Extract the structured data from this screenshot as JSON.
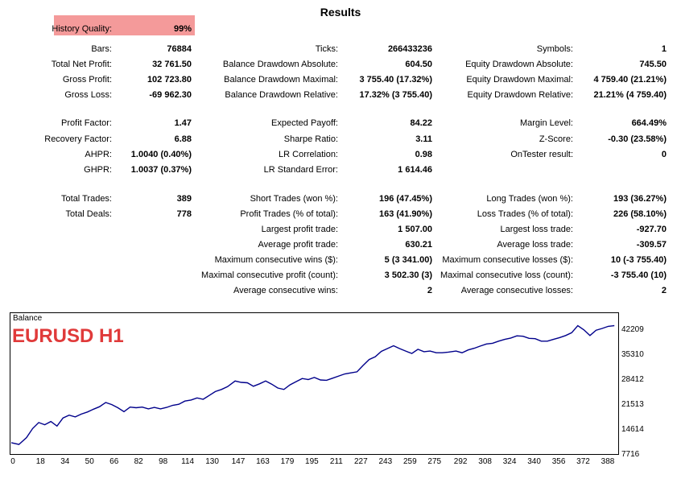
{
  "title": "Results",
  "history_quality": {
    "label": "History Quality:",
    "value": "99%"
  },
  "col1": [
    {
      "label": "Bars:",
      "value": "76884"
    },
    {
      "label": "Total Net Profit:",
      "value": "32 761.50"
    },
    {
      "label": "Gross Profit:",
      "value": "102 723.80"
    },
    {
      "label": "Gross Loss:",
      "value": "-69 962.30"
    },
    {
      "label": "Profit Factor:",
      "value": "1.47"
    },
    {
      "label": "Recovery Factor:",
      "value": "6.88"
    },
    {
      "label": "AHPR:",
      "value": "1.0040 (0.40%)"
    },
    {
      "label": "GHPR:",
      "value": "1.0037 (0.37%)"
    },
    {
      "label": "Total Trades:",
      "value": "389"
    },
    {
      "label": "Total Deals:",
      "value": "778"
    }
  ],
  "col2": [
    {
      "label": "Ticks:",
      "value": "266433236"
    },
    {
      "label": "Balance Drawdown Absolute:",
      "value": "604.50"
    },
    {
      "label": "Balance Drawdown Maximal:",
      "value": "3 755.40 (17.32%)"
    },
    {
      "label": "Balance Drawdown Relative:",
      "value": "17.32% (3 755.40)"
    },
    {
      "label": "Expected Payoff:",
      "value": "84.22"
    },
    {
      "label": "Sharpe Ratio:",
      "value": "3.11"
    },
    {
      "label": "LR Correlation:",
      "value": "0.98"
    },
    {
      "label": "LR Standard Error:",
      "value": "1 614.46"
    },
    {
      "label": "Short Trades (won %):",
      "value": "196 (47.45%)"
    },
    {
      "label": "Profit Trades (% of total):",
      "value": "163 (41.90%)"
    },
    {
      "label": "Largest profit trade:",
      "value": "1 507.00"
    },
    {
      "label": "Average profit trade:",
      "value": "630.21"
    },
    {
      "label": "Maximum consecutive wins ($):",
      "value": "5 (3 341.00)"
    },
    {
      "label": "Maximal consecutive profit (count):",
      "value": "3 502.30 (3)"
    },
    {
      "label": "Average consecutive wins:",
      "value": "2"
    }
  ],
  "col3": [
    {
      "label": "Symbols:",
      "value": "1"
    },
    {
      "label": "Equity Drawdown Absolute:",
      "value": "745.50"
    },
    {
      "label": "Equity Drawdown Maximal:",
      "value": "4 759.40 (21.21%)"
    },
    {
      "label": "Equity Drawdown Relative:",
      "value": "21.21% (4 759.40)"
    },
    {
      "label": "Margin Level:",
      "value": "664.49%"
    },
    {
      "label": "Z-Score:",
      "value": "-0.30 (23.58%)"
    },
    {
      "label": "OnTester result:",
      "value": "0"
    },
    {
      "label": "Long Trades (won %):",
      "value": "193 (36.27%)"
    },
    {
      "label": "Loss Trades (% of total):",
      "value": "226 (58.10%)"
    },
    {
      "label": "Largest loss trade:",
      "value": "-927.70"
    },
    {
      "label": "Average loss trade:",
      "value": "-309.57"
    },
    {
      "label": "Maximum consecutive losses ($):",
      "value": "10 (-3 755.40)"
    },
    {
      "label": "Maximal consecutive loss (count):",
      "value": "-3 755.40 (10)"
    },
    {
      "label": "Average consecutive losses:",
      "value": "2"
    }
  ],
  "chart": {
    "label": "Balance",
    "symbol_label": "EURUSD H1",
    "line_color": "#00008b",
    "symbol_color": "#e03a3a",
    "y_ticks": [
      "42209",
      "35310",
      "28412",
      "21513",
      "14614",
      "7716"
    ],
    "x_ticks": [
      "0",
      "18",
      "34",
      "50",
      "66",
      "82",
      "98",
      "114",
      "130",
      "147",
      "163",
      "179",
      "195",
      "211",
      "227",
      "243",
      "259",
      "275",
      "292",
      "308",
      "324",
      "340",
      "356",
      "372",
      "388"
    ]
  },
  "chart_data": {
    "type": "line",
    "title": "",
    "xlabel": "",
    "ylabel": "",
    "xlim": [
      0,
      398
    ],
    "ylim": [
      7716,
      42209
    ],
    "series": [
      {
        "values": [
          [
            0,
            9800
          ],
          [
            5,
            9300
          ],
          [
            10,
            11200
          ],
          [
            14,
            13800
          ],
          [
            18,
            15500
          ],
          [
            22,
            14900
          ],
          [
            26,
            15800
          ],
          [
            30,
            14500
          ],
          [
            34,
            16800
          ],
          [
            38,
            17600
          ],
          [
            42,
            17100
          ],
          [
            46,
            17900
          ],
          [
            50,
            18500
          ],
          [
            54,
            19300
          ],
          [
            58,
            20000
          ],
          [
            62,
            21200
          ],
          [
            66,
            20600
          ],
          [
            70,
            19700
          ],
          [
            74,
            18600
          ],
          [
            78,
            19900
          ],
          [
            82,
            19700
          ],
          [
            86,
            19900
          ],
          [
            90,
            19400
          ],
          [
            94,
            19800
          ],
          [
            98,
            19400
          ],
          [
            102,
            19800
          ],
          [
            106,
            20400
          ],
          [
            110,
            20700
          ],
          [
            114,
            21600
          ],
          [
            118,
            21900
          ],
          [
            122,
            22500
          ],
          [
            126,
            22100
          ],
          [
            130,
            23200
          ],
          [
            134,
            24300
          ],
          [
            138,
            24900
          ],
          [
            142,
            25700
          ],
          [
            147,
            27300
          ],
          [
            151,
            26900
          ],
          [
            155,
            26800
          ],
          [
            159,
            25800
          ],
          [
            163,
            26500
          ],
          [
            167,
            27300
          ],
          [
            171,
            26400
          ],
          [
            175,
            25300
          ],
          [
            179,
            24900
          ],
          [
            183,
            26200
          ],
          [
            187,
            27100
          ],
          [
            191,
            28000
          ],
          [
            195,
            27700
          ],
          [
            199,
            28300
          ],
          [
            203,
            27600
          ],
          [
            207,
            27500
          ],
          [
            211,
            28100
          ],
          [
            215,
            28700
          ],
          [
            219,
            29300
          ],
          [
            223,
            29600
          ],
          [
            227,
            29900
          ],
          [
            231,
            31700
          ],
          [
            235,
            33400
          ],
          [
            239,
            34200
          ],
          [
            243,
            35700
          ],
          [
            247,
            36500
          ],
          [
            251,
            37300
          ],
          [
            255,
            36500
          ],
          [
            259,
            35800
          ],
          [
            263,
            35100
          ],
          [
            267,
            36300
          ],
          [
            271,
            35600
          ],
          [
            275,
            35800
          ],
          [
            279,
            35300
          ],
          [
            283,
            35300
          ],
          [
            287,
            35500
          ],
          [
            292,
            35800
          ],
          [
            296,
            35300
          ],
          [
            300,
            36100
          ],
          [
            304,
            36600
          ],
          [
            308,
            37200
          ],
          [
            312,
            37800
          ],
          [
            316,
            38000
          ],
          [
            320,
            38600
          ],
          [
            324,
            39100
          ],
          [
            328,
            39500
          ],
          [
            332,
            40100
          ],
          [
            336,
            40000
          ],
          [
            340,
            39400
          ],
          [
            344,
            39300
          ],
          [
            348,
            38600
          ],
          [
            352,
            38600
          ],
          [
            356,
            39100
          ],
          [
            360,
            39600
          ],
          [
            364,
            40200
          ],
          [
            368,
            41000
          ],
          [
            372,
            43000
          ],
          [
            376,
            41800
          ],
          [
            380,
            40200
          ],
          [
            384,
            41700
          ],
          [
            388,
            42200
          ],
          [
            392,
            42800
          ],
          [
            396,
            43000
          ]
        ]
      }
    ]
  }
}
